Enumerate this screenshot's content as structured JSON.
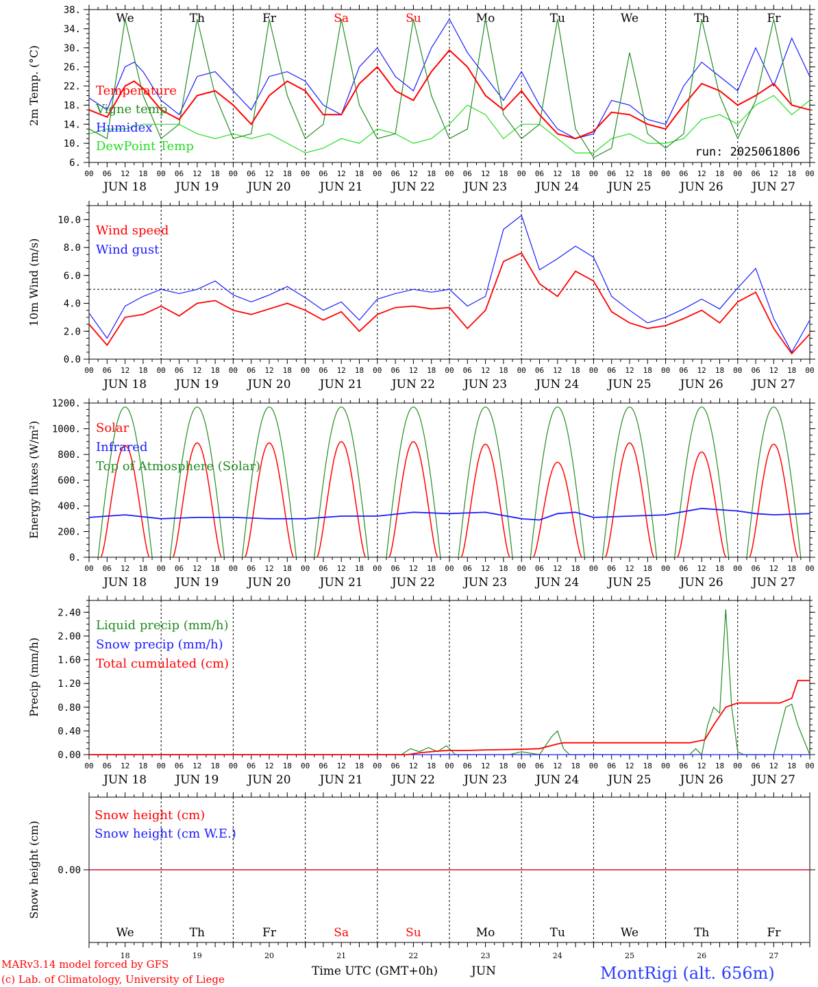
{
  "page": {
    "run_label": "run: 2025061806",
    "footer_model": "MARv3.14 model forced by GFS",
    "footer_lab": "(c) Lab. of Climatology, University of Liege",
    "station": "MontRigi (alt. 656m)",
    "xaxis_title": "Time UTC (GMT+0h)",
    "xaxis_month": "JUN"
  },
  "colors": {
    "red": "#ff0000",
    "blue": "#1a1aff",
    "green": "#228b22",
    "lightgreen": "#22dd22",
    "weekend": "#ff0000"
  },
  "days": {
    "dates": [
      "JUN 18",
      "JUN 19",
      "JUN 20",
      "JUN 21",
      "JUN 22",
      "JUN 23",
      "JUN 24",
      "JUN 25",
      "JUN 26",
      "JUN 27"
    ],
    "day_numbers": [
      "18",
      "19",
      "20",
      "21",
      "22",
      "23",
      "24",
      "25",
      "26",
      "27"
    ],
    "weekdays": [
      "We",
      "Th",
      "Fr",
      "Sa",
      "Su",
      "Mo",
      "Tu",
      "We",
      "Th",
      "Fr"
    ],
    "weekend": [
      false,
      false,
      false,
      true,
      true,
      false,
      false,
      false,
      false,
      false
    ],
    "hour_labels": [
      "00",
      "06",
      "12",
      "18"
    ],
    "final_hour_label": "00"
  },
  "chart_data": [
    {
      "type": "line",
      "id": "temp",
      "ylabel": "2m Temp. (°C)",
      "ylim": [
        6,
        38
      ],
      "yticks": [
        "6.",
        "10.",
        "14.",
        "18.",
        "22.",
        "26.",
        "30.",
        "34.",
        "38."
      ],
      "x_unit": "hours since JUN 18 00 UTC",
      "series": [
        {
          "name": "Temperature",
          "color": "#ff0000",
          "x": [
            0,
            6,
            12,
            15,
            18,
            24,
            30,
            36,
            42,
            48,
            54,
            60,
            66,
            72,
            78,
            84,
            90,
            96,
            102,
            108,
            114,
            120,
            126,
            132,
            138,
            144,
            150,
            156,
            162,
            168,
            174,
            180,
            186,
            192,
            198,
            204,
            210,
            216,
            222,
            228,
            234,
            240
          ],
          "y": [
            17,
            15.5,
            22,
            23,
            21.5,
            17,
            15,
            20,
            21,
            18,
            14,
            20,
            23,
            21,
            16,
            16,
            22.5,
            26,
            21,
            19,
            25,
            29.5,
            26,
            20,
            17,
            21,
            16,
            12,
            11,
            12.5,
            16.5,
            16,
            14,
            13,
            18,
            22.5,
            21,
            18,
            20,
            22.5,
            18,
            17
          ]
        },
        {
          "name": "Vigne temp",
          "color": "#228b22",
          "x": [
            0,
            6,
            12,
            18,
            24,
            30,
            36,
            42,
            48,
            54,
            60,
            66,
            72,
            78,
            84,
            90,
            96,
            102,
            108,
            114,
            120,
            126,
            132,
            138,
            144,
            150,
            156,
            162,
            168,
            174,
            180,
            186,
            192,
            198,
            204,
            210,
            216,
            222,
            228,
            234,
            240
          ],
          "y": [
            13,
            11,
            36,
            20,
            11,
            14,
            36,
            20,
            11,
            12,
            36,
            20,
            11,
            14,
            36,
            18,
            11,
            12,
            36,
            20,
            11,
            13,
            36,
            16,
            11,
            14,
            36,
            13,
            7,
            9,
            29,
            12,
            9,
            12,
            36,
            20,
            11,
            19,
            36,
            18,
            17
          ]
        },
        {
          "name": "Humidex",
          "color": "#1a1aff",
          "x": [
            0,
            6,
            12,
            15,
            18,
            24,
            30,
            36,
            42,
            48,
            54,
            60,
            66,
            72,
            78,
            84,
            90,
            96,
            102,
            108,
            114,
            120,
            126,
            132,
            138,
            144,
            150,
            156,
            162,
            168,
            174,
            180,
            186,
            192,
            198,
            204,
            210,
            216,
            222,
            228,
            234,
            240
          ],
          "y": [
            19.5,
            17,
            26,
            27,
            25,
            19,
            16,
            24,
            25,
            21,
            17,
            24,
            25,
            23,
            18,
            16,
            26,
            30,
            24,
            21,
            30,
            36,
            29,
            24,
            19,
            25,
            18,
            13,
            11,
            12,
            19,
            18,
            15,
            14,
            22,
            27,
            24,
            21,
            30,
            22,
            32,
            24
          ]
        },
        {
          "name": "DewPoint Temp",
          "color": "#22dd22",
          "x": [
            0,
            6,
            12,
            18,
            24,
            30,
            36,
            42,
            48,
            54,
            60,
            66,
            72,
            78,
            84,
            90,
            96,
            102,
            108,
            114,
            120,
            126,
            132,
            138,
            144,
            150,
            156,
            162,
            168,
            174,
            180,
            186,
            192,
            198,
            204,
            210,
            216,
            222,
            228,
            234,
            240
          ],
          "y": [
            12,
            13,
            13,
            14,
            14,
            14,
            12,
            11,
            12,
            11,
            12,
            10,
            8,
            9,
            11,
            10,
            13,
            12,
            10,
            11,
            14,
            18,
            16,
            11,
            14,
            14,
            11,
            8,
            8,
            11,
            12,
            10,
            10,
            11,
            15,
            16,
            14,
            18,
            20,
            16,
            19
          ]
        }
      ]
    },
    {
      "type": "line",
      "id": "wind",
      "ylabel": "10m Wind (m/s)",
      "ylim": [
        0,
        11
      ],
      "yticks": [
        "0.0",
        "2.0",
        "4.0",
        "6.0",
        "8.0",
        "10.0"
      ],
      "reference_line": 5,
      "series": [
        {
          "name": "Wind speed",
          "color": "#ff0000",
          "x": [
            0,
            6,
            12,
            18,
            24,
            30,
            36,
            42,
            48,
            54,
            60,
            66,
            72,
            78,
            84,
            90,
            96,
            102,
            108,
            114,
            120,
            126,
            132,
            138,
            144,
            150,
            156,
            162,
            168,
            174,
            180,
            186,
            192,
            198,
            204,
            210,
            216,
            222,
            228,
            234,
            240
          ],
          "y": [
            2.5,
            1,
            3,
            3.2,
            3.8,
            3.1,
            4,
            4.2,
            3.5,
            3.2,
            3.6,
            4,
            3.5,
            2.8,
            3.4,
            2,
            3.2,
            3.7,
            3.8,
            3.6,
            3.7,
            2.2,
            3.5,
            7,
            7.6,
            5.4,
            4.5,
            6.3,
            5.6,
            3.4,
            2.6,
            2.2,
            2.4,
            2.9,
            3.5,
            2.6,
            4.1,
            4.8,
            2.2,
            0.4,
            1.8
          ]
        },
        {
          "name": "Wind gust",
          "color": "#1a1aff",
          "x": [
            0,
            6,
            12,
            18,
            24,
            30,
            36,
            42,
            48,
            54,
            60,
            66,
            72,
            78,
            84,
            90,
            96,
            102,
            108,
            114,
            120,
            126,
            132,
            138,
            144,
            150,
            156,
            162,
            168,
            174,
            180,
            186,
            192,
            198,
            204,
            210,
            216,
            222,
            228,
            234,
            240
          ],
          "y": [
            3.3,
            1.5,
            3.8,
            4.5,
            5,
            4.7,
            5,
            5.6,
            4.6,
            4.1,
            4.6,
            5.2,
            4.4,
            3.5,
            4.1,
            2.8,
            4.3,
            4.7,
            5,
            4.8,
            5,
            3.8,
            4.5,
            9.3,
            10.3,
            6.4,
            7.2,
            8.1,
            7.3,
            4.5,
            3.5,
            2.6,
            3,
            3.6,
            4.3,
            3.6,
            5.1,
            6.5,
            2.9,
            0.5,
            2.8
          ]
        }
      ]
    },
    {
      "type": "line",
      "id": "energy",
      "ylabel": "Energy fluxes (W/m²)",
      "ylim": [
        0,
        1200
      ],
      "yticks": [
        "0.",
        "200.",
        "400.",
        "600.",
        "800.",
        "1000.",
        "1200."
      ],
      "series": [
        {
          "name": "Solar",
          "color": "#ff0000",
          "daily_peaks": [
            870,
            890,
            890,
            900,
            900,
            880,
            740,
            890,
            820,
            880
          ]
        },
        {
          "name": "Infrared",
          "color": "#1a1aff",
          "x": [
            0,
            12,
            24,
            36,
            48,
            60,
            72,
            84,
            96,
            108,
            120,
            132,
            144,
            150,
            156,
            162,
            168,
            180,
            192,
            204,
            216,
            222,
            228,
            240
          ],
          "y": [
            310,
            330,
            300,
            310,
            310,
            300,
            300,
            320,
            320,
            350,
            340,
            350,
            300,
            290,
            340,
            350,
            310,
            320,
            330,
            380,
            360,
            340,
            330,
            340
          ]
        },
        {
          "name": "Top of Atmosphere (Solar)",
          "color": "#228b22",
          "daily_peak": 1170
        }
      ]
    },
    {
      "type": "line",
      "id": "precip",
      "ylabel": "Precip (mm/h)",
      "ylim": [
        0,
        2.6
      ],
      "yticks": [
        "0.00",
        "0.40",
        "0.80",
        "1.20",
        "1.60",
        "2.00",
        "2.40"
      ],
      "series": [
        {
          "name": "Liquid precip (mm/h)",
          "color": "#228b22",
          "x": [
            0,
            104,
            107,
            110,
            113,
            116,
            119,
            122,
            126,
            140,
            144,
            150,
            154,
            156,
            158,
            160,
            162,
            164,
            168,
            200,
            202,
            204,
            206,
            208,
            210,
            212,
            214,
            216,
            218,
            220,
            222,
            228,
            232,
            234,
            236,
            240
          ],
          "y": [
            0,
            0,
            0.1,
            0.05,
            0.12,
            0.05,
            0.15,
            0,
            0,
            0,
            0.05,
            0,
            0.3,
            0.4,
            0.1,
            0,
            0,
            0,
            0,
            0,
            0.1,
            0,
            0.5,
            0.8,
            0.7,
            2.45,
            0.8,
            0.05,
            0,
            0,
            0,
            0,
            0.8,
            0.85,
            0.5,
            0
          ]
        },
        {
          "name": "Snow precip (mm/h)",
          "color": "#1a1aff",
          "x": [
            0,
            240
          ],
          "y": [
            0,
            0
          ]
        },
        {
          "name": "Total cumulated (cm)",
          "color": "#ff0000",
          "x": [
            0,
            106,
            110,
            116,
            120,
            126,
            132,
            144,
            150,
            156,
            158,
            168,
            200,
            205,
            208,
            212,
            216,
            230,
            234,
            236,
            240
          ],
          "y": [
            0,
            0,
            0.03,
            0.06,
            0.07,
            0.07,
            0.08,
            0.09,
            0.1,
            0.18,
            0.2,
            0.2,
            0.2,
            0.25,
            0.5,
            0.8,
            0.87,
            0.87,
            0.95,
            1.25,
            1.25
          ]
        }
      ]
    },
    {
      "type": "line",
      "id": "snow",
      "ylabel": "Snow height (cm)",
      "ylim": [
        -1,
        1
      ],
      "yticks": [
        "0.00"
      ],
      "series": [
        {
          "name": "Snow height (cm)",
          "color": "#ff0000",
          "x": [
            0,
            240
          ],
          "y": [
            0,
            0
          ]
        },
        {
          "name": "Snow height (cm W.E.)",
          "color": "#1a1aff",
          "x": [
            0,
            240
          ],
          "y": [
            0,
            0
          ]
        }
      ]
    }
  ]
}
